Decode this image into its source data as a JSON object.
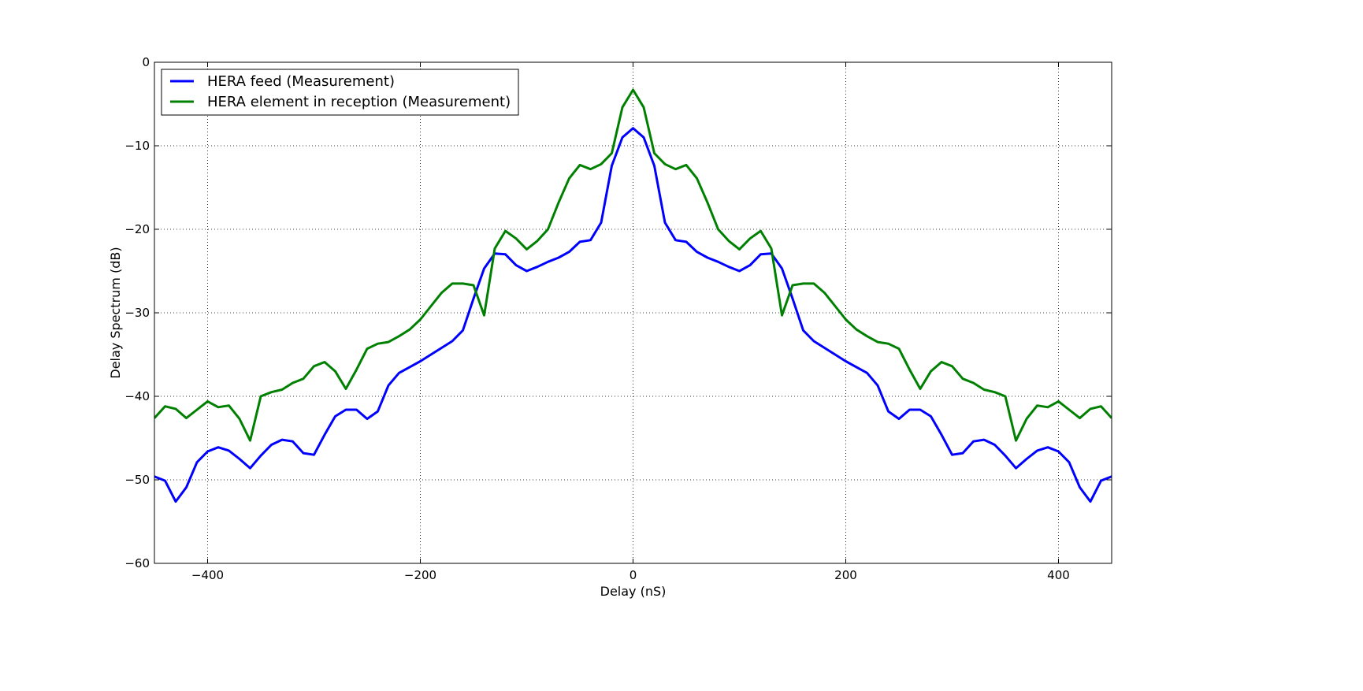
{
  "chart_data": {
    "type": "line",
    "title": "",
    "xlabel": "Delay (nS)",
    "ylabel": "Delay Spectrum (dB)",
    "xlim": [
      -450,
      450
    ],
    "ylim": [
      -60,
      0
    ],
    "xticks": [
      -400,
      -200,
      0,
      200,
      400
    ],
    "yticks": [
      -60,
      -50,
      -40,
      -30,
      -20,
      -10,
      0
    ],
    "xtick_labels": [
      "−400",
      "−200",
      "0",
      "200",
      "400"
    ],
    "ytick_labels": [
      "−60",
      "−50",
      "−40",
      "−30",
      "−20",
      "−10",
      "0"
    ],
    "grid": true,
    "legend_position": "top-left",
    "series": [
      {
        "name": "HERA feed (Measurement)",
        "color": "#0000ff",
        "x": [
          -450,
          -440,
          -430,
          -420,
          -410,
          -400,
          -390,
          -380,
          -370,
          -360,
          -350,
          -340,
          -330,
          -320,
          -310,
          -300,
          -290,
          -280,
          -270,
          -260,
          -250,
          -240,
          -230,
          -220,
          -210,
          -200,
          -190,
          -180,
          -170,
          -160,
          -150,
          -140,
          -130,
          -120,
          -110,
          -100,
          -90,
          -80,
          -70,
          -60,
          -50,
          -40,
          -30,
          -20,
          -10,
          0,
          10,
          20,
          30,
          40,
          50,
          60,
          70,
          80,
          90,
          100,
          110,
          120,
          130,
          140,
          150,
          160,
          170,
          180,
          190,
          200,
          210,
          220,
          230,
          240,
          250,
          260,
          270,
          280,
          290,
          300,
          310,
          320,
          330,
          340,
          350,
          360,
          370,
          380,
          390,
          400,
          410,
          420,
          430,
          440,
          450
        ],
        "y": [
          -49.6,
          -50.1,
          -52.6,
          -50.9,
          -47.9,
          -46.6,
          -46.1,
          -46.5,
          -47.5,
          -48.6,
          -47.1,
          -45.8,
          -45.2,
          -45.4,
          -46.8,
          -47.0,
          -44.6,
          -42.4,
          -41.6,
          -41.6,
          -42.7,
          -41.8,
          -38.7,
          -37.2,
          -36.5,
          -35.8,
          -35.0,
          -34.2,
          -33.4,
          -32.1,
          -28.3,
          -24.7,
          -22.9,
          -23.0,
          -24.3,
          -25.0,
          -24.5,
          -23.9,
          -23.4,
          -22.7,
          -21.5,
          -21.3,
          -19.2,
          -12.4,
          -9.0,
          -7.9,
          -9.0,
          -12.4,
          -19.2,
          -21.3,
          -21.5,
          -22.7,
          -23.4,
          -23.9,
          -24.5,
          -25.0,
          -24.3,
          -23.0,
          -22.9,
          -24.7,
          -28.3,
          -32.1,
          -33.4,
          -34.2,
          -35.0,
          -35.8,
          -36.5,
          -37.2,
          -38.7,
          -41.8,
          -42.7,
          -41.6,
          -41.6,
          -42.4,
          -44.6,
          -47.0,
          -46.8,
          -45.4,
          -45.2,
          -45.8,
          -47.1,
          -48.6,
          -47.5,
          -46.5,
          -46.1,
          -46.6,
          -47.9,
          -50.9,
          -52.6,
          -50.1,
          -49.6
        ]
      },
      {
        "name": "HERA element in reception (Measurement)",
        "color": "#008000",
        "x": [
          -450,
          -440,
          -430,
          -420,
          -410,
          -400,
          -390,
          -380,
          -370,
          -360,
          -350,
          -340,
          -330,
          -320,
          -310,
          -300,
          -290,
          -280,
          -270,
          -260,
          -250,
          -240,
          -230,
          -220,
          -210,
          -200,
          -190,
          -180,
          -170,
          -160,
          -150,
          -140,
          -130,
          -120,
          -110,
          -100,
          -90,
          -80,
          -70,
          -60,
          -50,
          -40,
          -30,
          -20,
          -10,
          0,
          10,
          20,
          30,
          40,
          50,
          60,
          70,
          80,
          90,
          100,
          110,
          120,
          130,
          140,
          150,
          160,
          170,
          180,
          190,
          200,
          210,
          220,
          230,
          240,
          250,
          260,
          270,
          280,
          290,
          300,
          310,
          320,
          330,
          340,
          350,
          360,
          370,
          380,
          390,
          400,
          410,
          420,
          430,
          440,
          450
        ],
        "y": [
          -42.6,
          -41.2,
          -41.5,
          -42.6,
          -41.6,
          -40.6,
          -41.3,
          -41.1,
          -42.7,
          -45.3,
          -40.0,
          -39.5,
          -39.2,
          -38.4,
          -37.9,
          -36.4,
          -35.9,
          -37.0,
          -39.1,
          -36.8,
          -34.3,
          -33.7,
          -33.5,
          -32.8,
          -32.0,
          -30.8,
          -29.2,
          -27.6,
          -26.5,
          -26.5,
          -26.7,
          -30.3,
          -22.3,
          -20.2,
          -21.1,
          -22.4,
          -21.4,
          -20.0,
          -16.8,
          -13.9,
          -12.3,
          -12.8,
          -12.2,
          -10.9,
          -5.4,
          -3.3,
          -5.4,
          -10.9,
          -12.2,
          -12.8,
          -12.3,
          -13.9,
          -16.8,
          -20.0,
          -21.4,
          -22.4,
          -21.1,
          -20.2,
          -22.3,
          -30.3,
          -26.7,
          -26.5,
          -26.5,
          -27.6,
          -29.2,
          -30.8,
          -32.0,
          -32.8,
          -33.5,
          -33.7,
          -34.3,
          -36.8,
          -39.1,
          -37.0,
          -35.9,
          -36.4,
          -37.9,
          -38.4,
          -39.2,
          -39.5,
          -40.0,
          -45.3,
          -42.7,
          -41.1,
          -41.3,
          -40.6,
          -41.6,
          -42.6,
          -41.5,
          -41.2,
          -42.6
        ]
      }
    ]
  }
}
